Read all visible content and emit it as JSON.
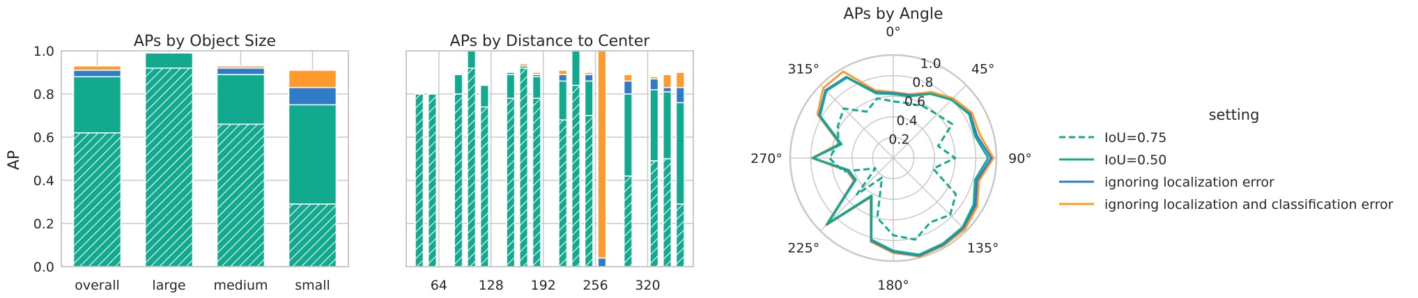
{
  "colors": {
    "iou75": "#12aa8e",
    "iou50": "#12aa8e",
    "loc": "#2f7bc6",
    "cls": "#ff9a2e",
    "grid": "#c8c8c8",
    "bg": "#ffffff"
  },
  "chart_data": [
    {
      "type": "bar",
      "title": "APs by Object Size",
      "ylabel": "AP",
      "ylim": [
        0,
        1.0
      ],
      "yticks": [
        "0.0",
        "0.2",
        "0.4",
        "0.6",
        "0.8",
        "1.0"
      ],
      "grid": true,
      "categories": [
        "overall",
        "large",
        "medium",
        "small"
      ],
      "series": [
        {
          "name": "IoU=0.75",
          "values": [
            0.62,
            0.92,
            0.66,
            0.29
          ],
          "style": "hatched"
        },
        {
          "name": "IoU=0.50",
          "values": [
            0.88,
            0.99,
            0.89,
            0.75
          ]
        },
        {
          "name": "ignoring localization error",
          "values": [
            0.91,
            0.99,
            0.92,
            0.83
          ]
        },
        {
          "name": "ignoring localization and classification error",
          "values": [
            0.93,
            0.99,
            0.93,
            0.91
          ]
        }
      ]
    },
    {
      "type": "bar",
      "title": "APs by Distance to Center",
      "ylim": [
        0,
        1.0
      ],
      "grid": true,
      "xticks": [
        "64",
        "128",
        "192",
        "256",
        "320"
      ],
      "bins": [
        {
          "iou75": 0.8,
          "iou50": 0.8,
          "loc": 0.8,
          "cls": 0.8
        },
        {
          "iou75": 0.8,
          "iou50": 0.8,
          "loc": 0.8,
          "cls": 0.8
        },
        {
          "iou75": 0.0,
          "iou50": 0.0,
          "loc": 0.0,
          "cls": 0.0
        },
        {
          "iou75": 0.8,
          "iou50": 0.89,
          "loc": 0.89,
          "cls": 0.89
        },
        {
          "iou75": 0.92,
          "iou50": 1.0,
          "loc": 1.0,
          "cls": 1.0
        },
        {
          "iou75": 0.74,
          "iou50": 0.84,
          "loc": 0.84,
          "cls": 0.84
        },
        {
          "iou75": 0.0,
          "iou50": 0.0,
          "loc": 0.0,
          "cls": 0.0
        },
        {
          "iou75": 0.78,
          "iou50": 0.89,
          "loc": 0.9,
          "cls": 0.9
        },
        {
          "iou75": 0.92,
          "iou50": 0.93,
          "loc": 0.93,
          "cls": 0.94
        },
        {
          "iou75": 0.78,
          "iou50": 0.88,
          "loc": 0.89,
          "cls": 0.9
        },
        {
          "iou75": 0.0,
          "iou50": 0.0,
          "loc": 0.0,
          "cls": 0.0
        },
        {
          "iou75": 0.68,
          "iou50": 0.86,
          "loc": 0.89,
          "cls": 0.91
        },
        {
          "iou75": 0.84,
          "iou50": 1.0,
          "loc": 1.0,
          "cls": 1.0
        },
        {
          "iou75": 0.7,
          "iou50": 0.86,
          "loc": 0.89,
          "cls": 0.9
        },
        {
          "iou75": 0.0,
          "iou50": 0.0,
          "loc": 0.04,
          "cls": 1.0
        },
        {
          "iou75": 0.0,
          "iou50": 0.0,
          "loc": 0.0,
          "cls": 0.0
        },
        {
          "iou75": 0.42,
          "iou50": 0.8,
          "loc": 0.86,
          "cls": 0.89
        },
        {
          "iou75": 0.0,
          "iou50": 0.0,
          "loc": 0.0,
          "cls": 0.0
        },
        {
          "iou75": 0.49,
          "iou50": 0.82,
          "loc": 0.87,
          "cls": 0.88
        },
        {
          "iou75": 0.5,
          "iou50": 0.81,
          "loc": 0.83,
          "cls": 0.89
        },
        {
          "iou75": 0.29,
          "iou50": 0.76,
          "loc": 0.83,
          "cls": 0.9
        }
      ]
    },
    {
      "type": "line",
      "projection": "polar",
      "title": "APs by Angle",
      "angle_labels": [
        "0°",
        "45°",
        "90°",
        "135°",
        "180°",
        "225°",
        "270°",
        "315°"
      ],
      "radial_ticks": [
        "0.2",
        "0.4",
        "0.6",
        "0.8",
        "1.0"
      ],
      "rlim": [
        0,
        1.0
      ],
      "angles_deg": [
        0,
        15,
        30,
        45,
        60,
        75,
        90,
        105,
        120,
        135,
        150,
        165,
        180,
        195,
        210,
        225,
        240,
        255,
        270,
        285,
        300,
        315,
        330,
        345
      ],
      "series": [
        {
          "name": "IoU=0.75",
          "dash": true,
          "values": [
            0.55,
            0.55,
            0.58,
            0.6,
            0.66,
            0.45,
            0.6,
            0.4,
            0.7,
            0.78,
            0.72,
            0.82,
            0.75,
            0.6,
            0.22,
            0.5,
            0.2,
            0.5,
            0.62,
            0.55,
            0.62,
            0.68,
            0.52,
            0.6
          ]
        },
        {
          "name": "IoU=0.50",
          "dash": false,
          "values": [
            0.62,
            0.62,
            0.72,
            0.8,
            0.85,
            0.82,
            0.92,
            0.82,
            0.9,
            0.95,
            0.96,
            0.97,
            0.9,
            0.82,
            0.42,
            0.9,
            0.42,
            0.45,
            0.78,
            0.52,
            0.82,
            0.92,
            0.9,
            0.65
          ]
        },
        {
          "name": "ignoring localization error",
          "dash": false,
          "values": [
            0.63,
            0.63,
            0.72,
            0.8,
            0.86,
            0.84,
            0.95,
            0.84,
            0.92,
            0.96,
            0.97,
            0.98,
            0.91,
            0.83,
            0.43,
            0.91,
            0.43,
            0.46,
            0.78,
            0.53,
            0.83,
            0.93,
            0.91,
            0.66
          ]
        },
        {
          "name": "ignoring localization and classification error",
          "dash": false,
          "values": [
            0.64,
            0.64,
            0.74,
            0.82,
            0.88,
            0.87,
            0.97,
            0.86,
            0.94,
            0.98,
            0.98,
            0.99,
            0.92,
            0.84,
            0.44,
            0.92,
            0.44,
            0.47,
            0.79,
            0.54,
            0.85,
            0.96,
            0.97,
            0.68
          ]
        }
      ]
    }
  ],
  "legend": {
    "title": "setting",
    "items": [
      {
        "label": "IoU=0.75",
        "dash": true,
        "color_key": "iou75"
      },
      {
        "label": "IoU=0.50",
        "dash": false,
        "color_key": "iou50"
      },
      {
        "label": "ignoring localization error",
        "dash": false,
        "color_key": "loc"
      },
      {
        "label": "ignoring localization and classification error",
        "dash": false,
        "color_key": "cls"
      }
    ]
  }
}
